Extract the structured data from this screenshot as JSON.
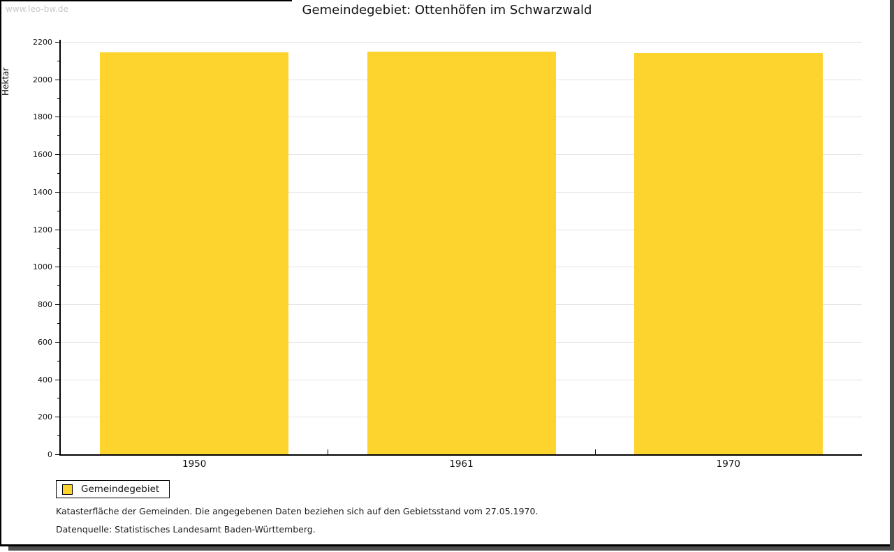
{
  "watermark": "www.leo-bw.de",
  "title": "Gemeindegebiet: Ottenhöfen im Schwarzwald",
  "chart_data": {
    "type": "bar",
    "title": "Gemeindegebiet: Ottenhöfen im Schwarzwald",
    "categories": [
      "1950",
      "1961",
      "1970"
    ],
    "series": [
      {
        "name": "Gemeindegebiet",
        "values": [
          2146,
          2147,
          2142
        ]
      }
    ],
    "xlabel": "",
    "ylabel": "Hektar",
    "ylim": [
      0,
      2200
    ],
    "ytick_step": 200,
    "yminor_step": 100,
    "grid": "horizontal-major",
    "legend_position": "bottom-left",
    "bar_color": "#FDD32D",
    "grid_color": "#e3e3e3",
    "axis_color": "#000000"
  },
  "legend": {
    "items": [
      {
        "label": "Gemeindegebiet",
        "color": "#FDD32D"
      }
    ]
  },
  "footnotes": {
    "line1": "Katasterfläche der Gemeinden. Die angegebenen Daten beziehen sich auf den Gebietsstand vom 27.05.1970.",
    "line2": "Datenquelle: Statistisches Landesamt Baden-Württemberg."
  }
}
